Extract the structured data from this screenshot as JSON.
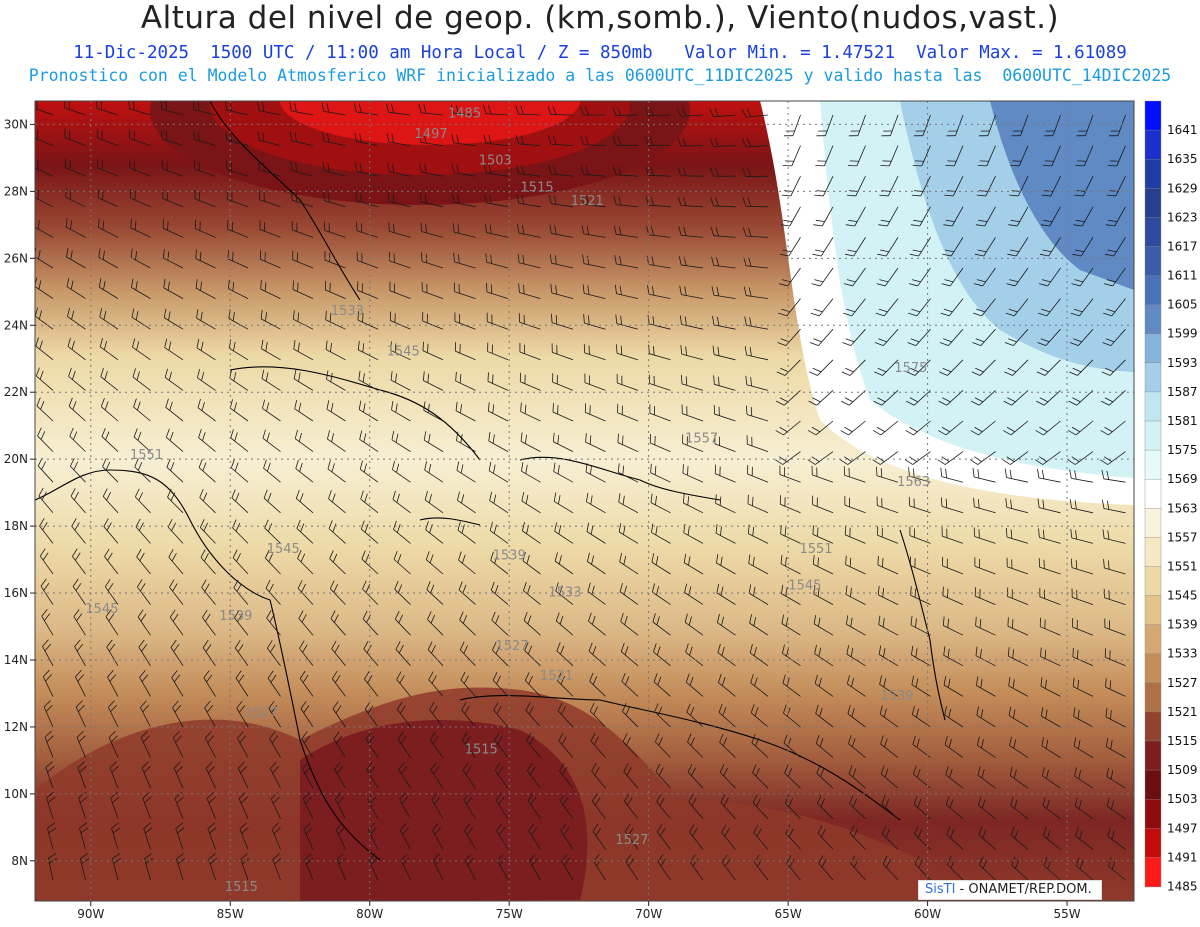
{
  "header": {
    "title": "Altura del nivel de geop. (km,somb.), Viento(nudos,vast.)",
    "subtitle_1": "11-Dic-2025  1500 UTC / 11:00 am Hora Local / Z = 850mb   Valor Min. = 1.47521  Valor Max. = 1.61089",
    "subtitle_2": "Pronostico con el Modelo Atmosferico WRF inicializado a las 0600UTC_11DIC2025 y valido hasta las  0600UTC_14DIC2025"
  },
  "map": {
    "lat_labels": [
      "30N",
      "28N",
      "26N",
      "24N",
      "22N",
      "20N",
      "18N",
      "16N",
      "14N",
      "12N",
      "10N",
      "8N"
    ],
    "lat_values": [
      30,
      28,
      26,
      24,
      22,
      20,
      18,
      16,
      14,
      12,
      10,
      8
    ],
    "lon_labels": [
      "90W",
      "85W",
      "80W",
      "75W",
      "70W",
      "65W",
      "60W",
      "55W"
    ],
    "lon_values": [
      -90,
      -85,
      -80,
      -75,
      -70,
      -65,
      -60,
      -55
    ],
    "contour_labels": [
      {
        "text": "1485",
        "lon": -76.6,
        "lat": 30.2
      },
      {
        "text": "1497",
        "lon": -77.8,
        "lat": 29.6
      },
      {
        "text": "1503",
        "lon": -75.5,
        "lat": 28.8
      },
      {
        "text": "1515",
        "lon": -74.0,
        "lat": 28.0
      },
      {
        "text": "1521",
        "lon": -72.2,
        "lat": 27.6
      },
      {
        "text": "1533",
        "lon": -80.8,
        "lat": 24.3
      },
      {
        "text": "1545",
        "lon": -78.8,
        "lat": 23.1
      },
      {
        "text": "1557",
        "lon": -68.1,
        "lat": 20.5
      },
      {
        "text": "1563",
        "lon": -60.5,
        "lat": 19.2
      },
      {
        "text": "1575",
        "lon": -60.6,
        "lat": 22.6
      },
      {
        "text": "1551",
        "lon": -88.0,
        "lat": 20.0
      },
      {
        "text": "1551",
        "lon": -64.0,
        "lat": 17.2
      },
      {
        "text": "1545",
        "lon": -83.1,
        "lat": 17.2
      },
      {
        "text": "1545",
        "lon": -64.4,
        "lat": 16.1
      },
      {
        "text": "1539",
        "lon": -75.0,
        "lat": 17.0
      },
      {
        "text": "1539",
        "lon": -84.8,
        "lat": 15.2
      },
      {
        "text": "1533",
        "lon": -73.0,
        "lat": 15.9
      },
      {
        "text": "1527",
        "lon": -74.9,
        "lat": 14.3
      },
      {
        "text": "1521",
        "lon": -73.3,
        "lat": 13.4
      },
      {
        "text": "1527",
        "lon": -83.9,
        "lat": 12.3
      },
      {
        "text": "1515",
        "lon": -76.0,
        "lat": 11.2
      },
      {
        "text": "1539",
        "lon": -61.1,
        "lat": 12.8
      },
      {
        "text": "1527",
        "lon": -70.6,
        "lat": 8.5
      },
      {
        "text": "1515",
        "lon": -84.6,
        "lat": 7.1
      },
      {
        "text": "1545",
        "lon": -89.6,
        "lat": 15.4
      }
    ],
    "credit_brand": "SisTI",
    "credit_text": " - ONAMET/REP.DOM."
  },
  "legend": {
    "levels": [
      "1641",
      "1635",
      "1629",
      "1623",
      "1617",
      "1611",
      "1605",
      "1599",
      "1593",
      "1587",
      "1581",
      "1575",
      "1569",
      "1563",
      "1557",
      "1551",
      "1545",
      "1539",
      "1533",
      "1527",
      "1521",
      "1515",
      "1509",
      "1503",
      "1497",
      "1491",
      "1485"
    ],
    "colors": [
      "#0010ff",
      "#1a2fcc",
      "#1f3da6",
      "#27408e",
      "#2c4a9e",
      "#3a5da8",
      "#4a72b8",
      "#5f8ac4",
      "#86b3da",
      "#a4cfe8",
      "#bfe6f1",
      "#d3f2f6",
      "#e6fafb",
      "#ffffff",
      "#faf3dc",
      "#f5e8c3",
      "#edd9a6",
      "#e2c38a",
      "#d3a872",
      "#c48d5a",
      "#b07046",
      "#8f4430",
      "#7c1e20",
      "#6b0e12",
      "#8d0b0b",
      "#c20b0b",
      "#ff1a1a"
    ]
  },
  "field": {
    "colors_note": "geopotential height shading",
    "ramp": [
      "#ff1a1a",
      "#c20b0b",
      "#8d0b0b",
      "#6b0e12",
      "#7c1e20",
      "#8f4430",
      "#b07046",
      "#c48d5a",
      "#d3a872",
      "#e2c38a",
      "#edd9a6",
      "#f5e8c3",
      "#faf3dc",
      "#ffffff",
      "#e6fafb",
      "#d3f2f6",
      "#bfe6f1",
      "#a4cfe8",
      "#86b3da",
      "#5f8ac4",
      "#4a72b8"
    ]
  }
}
